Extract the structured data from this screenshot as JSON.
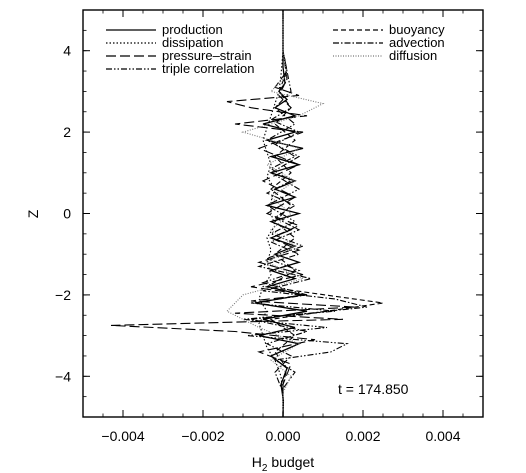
{
  "chart_data": {
    "type": "line",
    "xlabel": "H",
    "xlabel_subscript": "2",
    "xlabel_suffix": " budget",
    "ylabel": "Z",
    "xlim": [
      -0.005,
      0.005
    ],
    "ylim": [
      -5,
      5
    ],
    "x_ticks": [
      -0.004,
      -0.002,
      0.0,
      0.002,
      0.004
    ],
    "x_tick_labels": [
      "−0.004",
      "−0.002",
      "0.000",
      "0.002",
      "0.004"
    ],
    "y_ticks": [
      -4,
      -2,
      0,
      2,
      4
    ],
    "y_tick_labels": [
      "−4",
      "−2",
      "0",
      "2",
      "4"
    ],
    "grid": false,
    "legend_placement": "top",
    "annotation": "t = 174.850",
    "series": [
      {
        "name": "production",
        "dash": "solid",
        "y": [
          -5,
          -4.6,
          -4.2,
          -3.8,
          -3.5,
          -3.2,
          -3,
          -2.8,
          -2.6,
          -2.4,
          -2.2,
          -2,
          -1.8,
          -1.6,
          -1.4,
          -1.2,
          -1,
          -0.8,
          -0.6,
          -0.4,
          -0.2,
          0,
          0.2,
          0.4,
          0.6,
          0.8,
          1,
          1.2,
          1.4,
          1.6,
          1.8,
          2,
          2.2,
          2.4,
          2.6,
          2.8,
          3,
          3.2,
          3.6,
          4,
          4.5,
          5
        ],
        "x": [
          0,
          1e-05,
          -5e-05,
          0.0001,
          -0.0003,
          0.0004,
          -0.0006,
          0.0003,
          -0.0005,
          0.0006,
          -0.0007,
          0.0005,
          -0.0004,
          0.0003,
          -0.0003,
          0.0004,
          -0.0002,
          0.0003,
          -0.0003,
          0.0002,
          -0.0003,
          0.0004,
          -0.0004,
          0.0003,
          -0.0002,
          0.0003,
          -0.0003,
          0.0004,
          -0.0003,
          0.0005,
          -0.0004,
          0.0003,
          -0.0005,
          0.0003,
          -0.0002,
          0.0001,
          -0.0001,
          5e-05,
          0,
          0,
          0,
          0
        ]
      },
      {
        "name": "dissipation",
        "dash": "dotted",
        "y": [
          -5,
          -4.5,
          -4,
          -3.6,
          -3.3,
          -3,
          -2.7,
          -2.4,
          -2.1,
          -1.8,
          -1.5,
          -1.2,
          -0.9,
          -0.6,
          -0.3,
          0,
          0.3,
          0.6,
          0.9,
          1.2,
          1.5,
          1.8,
          2.1,
          2.4,
          2.7,
          3,
          3.4,
          4,
          5
        ],
        "x": [
          0,
          0,
          -5e-05,
          -0.0002,
          -0.0004,
          -0.0005,
          -0.0006,
          -0.0004,
          -0.0006,
          -0.0005,
          -0.0003,
          -0.0004,
          -0.0003,
          -0.0004,
          -0.0002,
          -0.0003,
          -0.0003,
          -0.0002,
          -0.0004,
          -0.0003,
          -0.0004,
          -0.0005,
          -0.0004,
          -0.0003,
          -0.0002,
          -0.0001,
          -5e-05,
          0,
          0
        ]
      },
      {
        "name": "pressure–strain",
        "dash": "long-dash",
        "y": [
          -5,
          -4.2,
          -3.7,
          -3.4,
          -3.1,
          -2.9,
          -2.75,
          -2.6,
          -2.45,
          -2.3,
          -2.15,
          -2,
          -1.8,
          -1.5,
          -1.2,
          -0.9,
          -0.6,
          -0.3,
          0,
          0.4,
          0.8,
          1.2,
          1.6,
          2,
          2.2,
          2.4,
          2.6,
          2.75,
          2.9,
          3.1,
          3.5,
          4,
          5
        ],
        "x": [
          0,
          0,
          0.0002,
          -0.0006,
          0.0008,
          -0.0012,
          -0.0043,
          0.0015,
          -0.0012,
          0.0018,
          -0.0008,
          0.0006,
          -0.0008,
          0.0005,
          -0.0006,
          0.0004,
          -0.0003,
          0.0004,
          -0.0004,
          0.0003,
          -0.0005,
          0.0004,
          -0.0006,
          0.0005,
          -0.0012,
          0.0006,
          -0.0008,
          -0.0014,
          0.0004,
          -0.0002,
          0.0001,
          0,
          0
        ]
      },
      {
        "name": "triple correlation",
        "dash": "dash-dot-dot",
        "y": [
          -5,
          -4.3,
          -3.9,
          -3.6,
          -3.4,
          -3.2,
          -3,
          -2.8,
          -2.6,
          -2.4,
          -2.2,
          -2,
          -1.7,
          -1.4,
          -1.1,
          -0.8,
          -0.5,
          -0.2,
          0.2,
          0.6,
          1,
          1.4,
          1.8,
          2.2,
          2.6,
          3,
          3.5,
          4,
          5
        ],
        "x": [
          0,
          0,
          0.0003,
          -0.0002,
          0.0012,
          0.0016,
          -0.0009,
          0.0011,
          -0.001,
          0.0013,
          -0.0008,
          0.0006,
          -0.0005,
          0.0004,
          -0.0004,
          0.0005,
          -0.0003,
          0.0003,
          -0.0004,
          0.0004,
          -0.0003,
          0.0004,
          -0.0004,
          0.0003,
          -0.0002,
          0.0002,
          0.0001,
          0,
          0
        ]
      },
      {
        "name": "buoyancy",
        "dash": "dashed",
        "y": [
          -5,
          -4.2,
          -3.8,
          -3.4,
          -3,
          -2.6,
          -2.2,
          -1.8,
          -1.4,
          -1,
          -0.6,
          -0.2,
          0.2,
          0.6,
          1,
          1.4,
          1.8,
          2.2,
          2.6,
          3,
          3.5,
          4,
          5
        ],
        "x": [
          0,
          0,
          0.0001,
          -0.0002,
          0.0003,
          -0.0003,
          0.0025,
          -0.0004,
          0.0003,
          -0.0002,
          0.0003,
          -0.0002,
          0.0002,
          -0.0003,
          0.0002,
          -0.0002,
          0.0003,
          -0.0002,
          0.0002,
          -0.0001,
          0.0001,
          0,
          0
        ]
      },
      {
        "name": "advection",
        "dash": "dash-dot",
        "y": [
          -5,
          -4.4,
          -3.9,
          -3.5,
          -3.2,
          -2.9,
          -2.6,
          -2.3,
          -2.1,
          -1.9,
          -1.6,
          -1.3,
          -1,
          -0.7,
          -0.4,
          -0.1,
          0.2,
          0.5,
          0.8,
          1.1,
          1.4,
          1.7,
          2,
          2.3,
          2.6,
          2.9,
          3.3,
          4,
          5
        ],
        "x": [
          0,
          0,
          -0.0002,
          0.0002,
          -0.0004,
          0.0006,
          -0.0008,
          0.0021,
          0.0013,
          -0.0005,
          0.0007,
          -0.0006,
          0.0004,
          -0.0003,
          0.0004,
          -0.0002,
          0.0003,
          -0.0004,
          0.0002,
          -0.0003,
          0.0003,
          -0.0002,
          0.0004,
          -0.0003,
          0.0002,
          -0.0001,
          0.0001,
          0,
          0
        ]
      },
      {
        "name": "diffusion",
        "dash": "fine-dotted",
        "y": [
          -5,
          -4.4,
          -4,
          -3.6,
          -3.2,
          -2.8,
          -2.4,
          -2,
          -1.6,
          -1.2,
          -0.8,
          -0.4,
          0,
          0.4,
          0.8,
          1.2,
          1.6,
          2,
          2.4,
          2.7,
          3,
          3.4,
          4,
          5
        ],
        "x": [
          0,
          0,
          0.0002,
          -0.0003,
          0.0004,
          -0.0006,
          -0.0014,
          -0.001,
          0.0005,
          -0.0004,
          0.0003,
          -0.0003,
          0.0002,
          -0.0003,
          0.0003,
          -0.0004,
          0.0004,
          -0.001,
          0.0004,
          0.001,
          -0.0003,
          0.0001,
          0,
          0
        ]
      }
    ]
  }
}
